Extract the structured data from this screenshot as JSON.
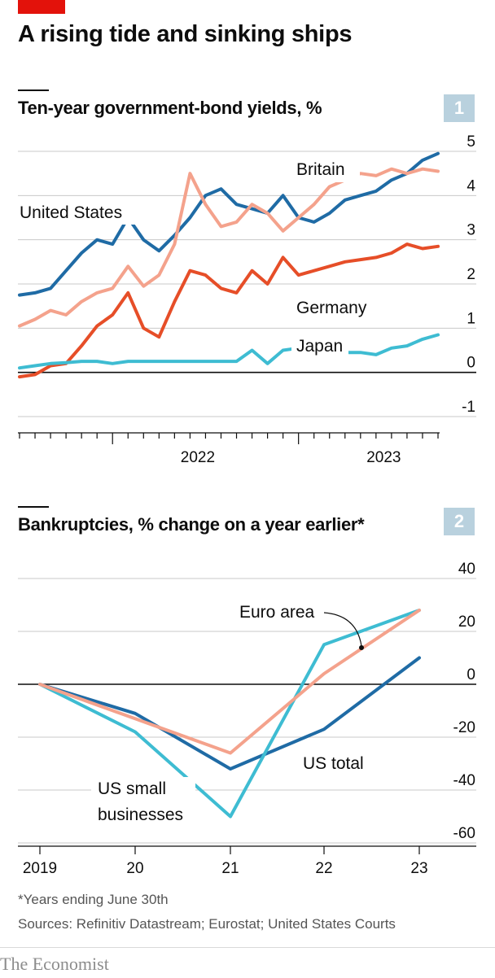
{
  "title": "A rising tide and sinking ships",
  "chart_data": [
    {
      "type": "line",
      "title": "Ten-year government-bond yields, %",
      "badge": "1",
      "ylim": [
        -1,
        5
      ],
      "yticks": [
        "5",
        "4",
        "3",
        "2",
        "1",
        "0",
        "-1"
      ],
      "xtick_labels": [
        "2022",
        "2023"
      ],
      "series": [
        {
          "name": "United States",
          "color": "#1f6ba5",
          "x": [
            "2021-07",
            "2021-08",
            "2021-09",
            "2021-10",
            "2021-11",
            "2021-12",
            "2022-01",
            "2022-02",
            "2022-03",
            "2022-04",
            "2022-05",
            "2022-06",
            "2022-07",
            "2022-08",
            "2022-09",
            "2022-10",
            "2022-11",
            "2022-12",
            "2023-01",
            "2023-02",
            "2023-03",
            "2023-04",
            "2023-05",
            "2023-06",
            "2023-07",
            "2023-08",
            "2023-09",
            "2023-10"
          ],
          "values": [
            1.75,
            1.8,
            1.9,
            2.3,
            2.7,
            3.0,
            2.9,
            3.5,
            3.0,
            2.75,
            3.1,
            3.5,
            4.0,
            4.15,
            3.8,
            3.7,
            3.6,
            4.0,
            3.5,
            3.4,
            3.6,
            3.9,
            4.0,
            4.1,
            4.35,
            4.5,
            4.8,
            4.95
          ]
        },
        {
          "name": "Britain",
          "color": "#f4a28c",
          "x": [
            "2021-07",
            "2021-08",
            "2021-09",
            "2021-10",
            "2021-11",
            "2021-12",
            "2022-01",
            "2022-02",
            "2022-03",
            "2022-04",
            "2022-05",
            "2022-06",
            "2022-07",
            "2022-08",
            "2022-09",
            "2022-10",
            "2022-11",
            "2022-12",
            "2023-01",
            "2023-02",
            "2023-03",
            "2023-04",
            "2023-05",
            "2023-06",
            "2023-07",
            "2023-08",
            "2023-09",
            "2023-10"
          ],
          "values": [
            1.05,
            1.2,
            1.4,
            1.3,
            1.6,
            1.8,
            1.9,
            2.4,
            1.95,
            2.2,
            2.9,
            4.5,
            3.8,
            3.3,
            3.4,
            3.8,
            3.6,
            3.2,
            3.5,
            3.8,
            4.2,
            4.35,
            4.5,
            4.45,
            4.6,
            4.5,
            4.6,
            4.55
          ]
        },
        {
          "name": "Germany",
          "color": "#e64e28",
          "x": [
            "2021-07",
            "2021-08",
            "2021-09",
            "2021-10",
            "2021-11",
            "2021-12",
            "2022-01",
            "2022-02",
            "2022-03",
            "2022-04",
            "2022-05",
            "2022-06",
            "2022-07",
            "2022-08",
            "2022-09",
            "2022-10",
            "2022-11",
            "2022-12",
            "2023-01",
            "2023-02",
            "2023-03",
            "2023-04",
            "2023-05",
            "2023-06",
            "2023-07",
            "2023-08",
            "2023-09",
            "2023-10"
          ],
          "values": [
            -0.1,
            -0.05,
            0.15,
            0.2,
            0.6,
            1.05,
            1.3,
            1.8,
            1.0,
            0.8,
            1.6,
            2.3,
            2.2,
            1.9,
            1.8,
            2.3,
            2.0,
            2.6,
            2.2,
            2.3,
            2.4,
            2.5,
            2.55,
            2.6,
            2.7,
            2.9,
            2.8,
            2.85
          ]
        },
        {
          "name": "Japan",
          "color": "#3ebcd2",
          "x": [
            "2021-07",
            "2021-08",
            "2021-09",
            "2021-10",
            "2021-11",
            "2021-12",
            "2022-01",
            "2022-02",
            "2022-03",
            "2022-04",
            "2022-05",
            "2022-06",
            "2022-07",
            "2022-08",
            "2022-09",
            "2022-10",
            "2022-11",
            "2022-12",
            "2023-01",
            "2023-02",
            "2023-03",
            "2023-04",
            "2023-05",
            "2023-06",
            "2023-07",
            "2023-08",
            "2023-09",
            "2023-10"
          ],
          "values": [
            0.1,
            0.15,
            0.2,
            0.22,
            0.25,
            0.25,
            0.2,
            0.25,
            0.25,
            0.25,
            0.25,
            0.25,
            0.25,
            0.25,
            0.25,
            0.5,
            0.2,
            0.5,
            0.55,
            0.4,
            0.4,
            0.45,
            0.45,
            0.4,
            0.55,
            0.6,
            0.75,
            0.85
          ]
        }
      ]
    },
    {
      "type": "line",
      "title": "Bankruptcies, % change on a year earlier*",
      "badge": "2",
      "ylim": [
        -60,
        40
      ],
      "yticks": [
        "40",
        "20",
        "0",
        "-20",
        "-40",
        "-60"
      ],
      "categories": [
        "2019",
        "20",
        "21",
        "22",
        "23"
      ],
      "series": [
        {
          "name": "US total",
          "color": "#1f6ba5",
          "values": [
            0,
            -11,
            -32,
            -17,
            10
          ]
        },
        {
          "name": "US small businesses",
          "color": "#3ebcd2",
          "values": [
            0,
            -18,
            -50,
            15,
            28
          ]
        },
        {
          "name": "Euro area",
          "color": "#f4a28c",
          "values": [
            0,
            -13,
            -26,
            4,
            28
          ]
        }
      ]
    }
  ],
  "labels": {
    "britain": "Britain",
    "us": "United States",
    "germany": "Germany",
    "japan": "Japan",
    "euro": "Euro area",
    "ustotal": "US total",
    "ussmall1": "US small",
    "ussmall2": "businesses"
  },
  "footnote": "*Years ending June 30th",
  "sources": "Sources: Refinitiv Datastream; Eurostat; United States Courts",
  "brand": "The Economist",
  "colors": {
    "accent": "#e3120b",
    "badge": "#b9d1de"
  }
}
